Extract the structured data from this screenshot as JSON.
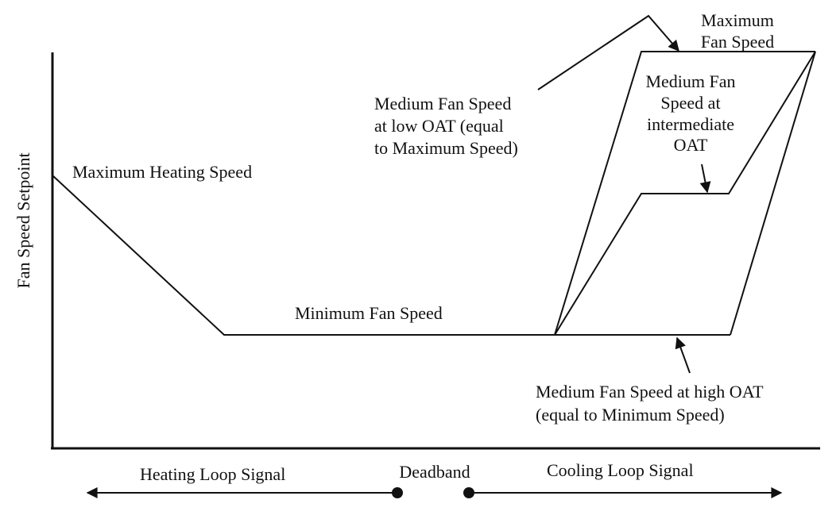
{
  "diagram": {
    "y_axis_label": "Fan Speed Setpoint",
    "labels": {
      "max_heating": "Maximum Heating Speed",
      "min_fan": "Minimum Fan Speed",
      "max_fan_l1": "Maximum",
      "max_fan_l2": "Fan Speed",
      "med_low_l1": "Medium Fan Speed",
      "med_low_l2": "at low OAT (equal",
      "med_low_l3": "to Maximum Speed)",
      "med_int_l1": "Medium Fan",
      "med_int_l2": "Speed at",
      "med_int_l3": "intermediate",
      "med_int_l4": "OAT",
      "med_high_l1": "Medium Fan Speed at high OAT",
      "med_high_l2": "(equal to Minimum Speed)"
    },
    "bottom": {
      "heating": "Heating Loop Signal",
      "deadband": "Deadband",
      "cooling": "Cooling Loop Signal"
    },
    "color": "#111111"
  }
}
